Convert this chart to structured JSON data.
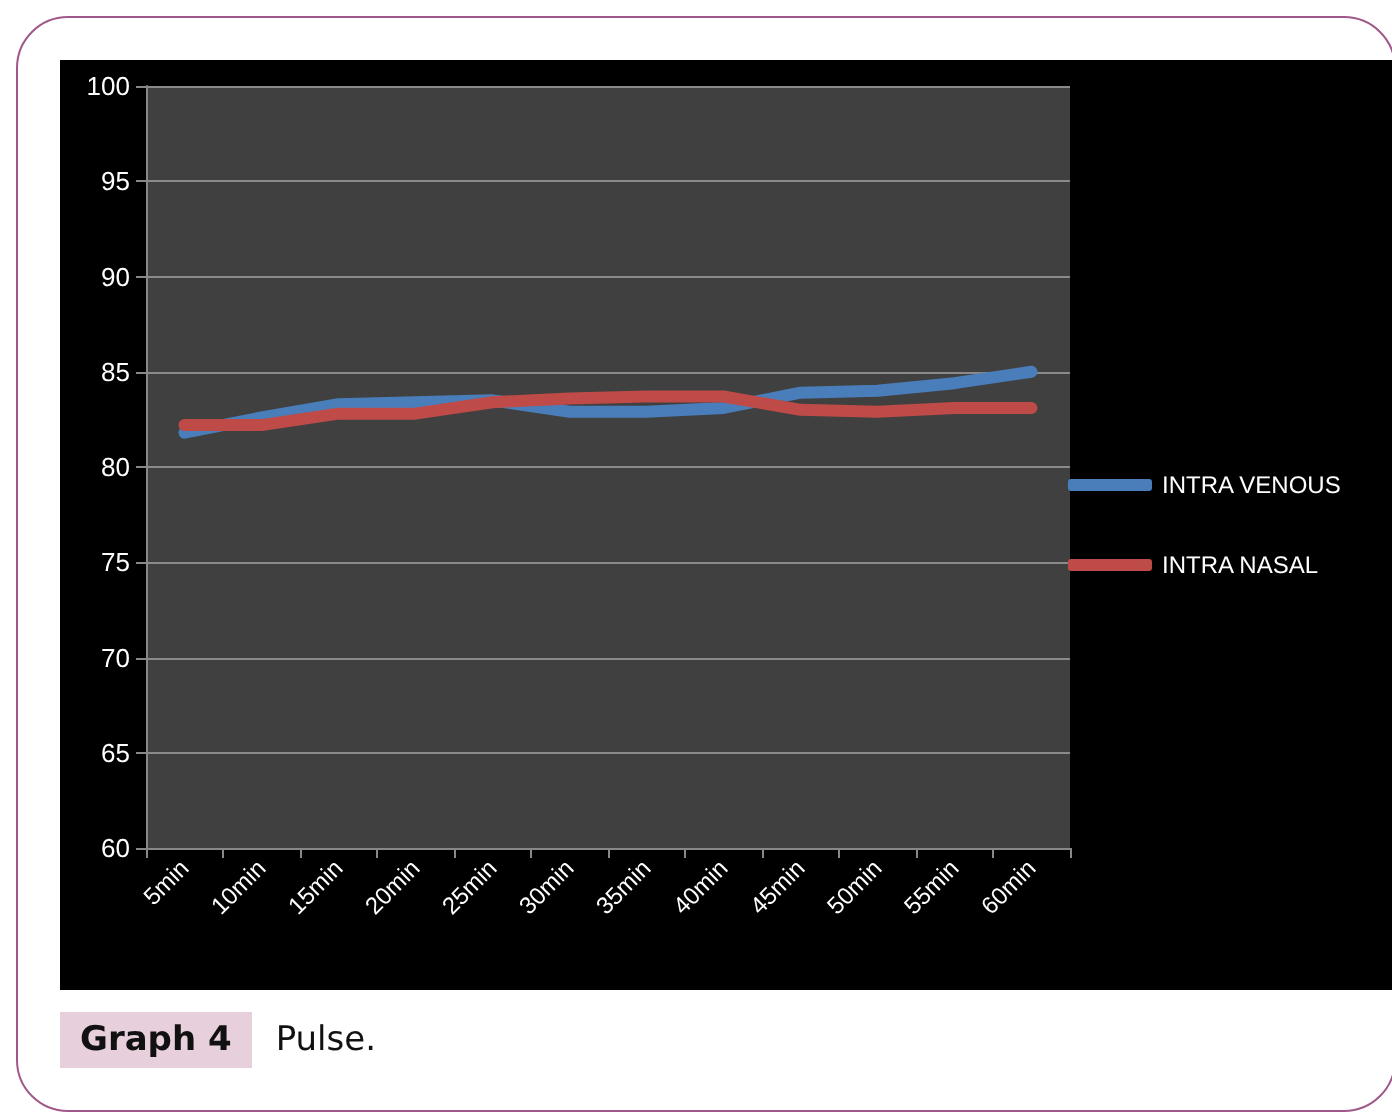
{
  "chart_data": {
    "type": "line",
    "title": "Graph 4",
    "subtitle": "Pulse.",
    "categories": [
      "5min",
      "10min",
      "15min",
      "20min",
      "25min",
      "30min",
      "35min",
      "40min",
      "45min",
      "50min",
      "55min",
      "60min"
    ],
    "series": [
      {
        "name": "INTRA VENOUS",
        "color": "#4a7ebb",
        "values": [
          81.8,
          82.6,
          83.3,
          83.4,
          83.5,
          82.9,
          82.9,
          83.1,
          83.9,
          84.0,
          84.4,
          85.0
        ]
      },
      {
        "name": "INTRA NASAL",
        "color": "#be4b48",
        "values": [
          82.2,
          82.2,
          82.8,
          82.8,
          83.4,
          83.6,
          83.7,
          83.7,
          83.0,
          82.9,
          83.1,
          83.1
        ]
      }
    ],
    "ylim": [
      60,
      100
    ],
    "yticks": [
      60,
      65,
      70,
      75,
      80,
      85,
      90,
      95,
      100
    ],
    "grid": "y",
    "legend": "right",
    "marker": "none",
    "line_style": "solid"
  }
}
